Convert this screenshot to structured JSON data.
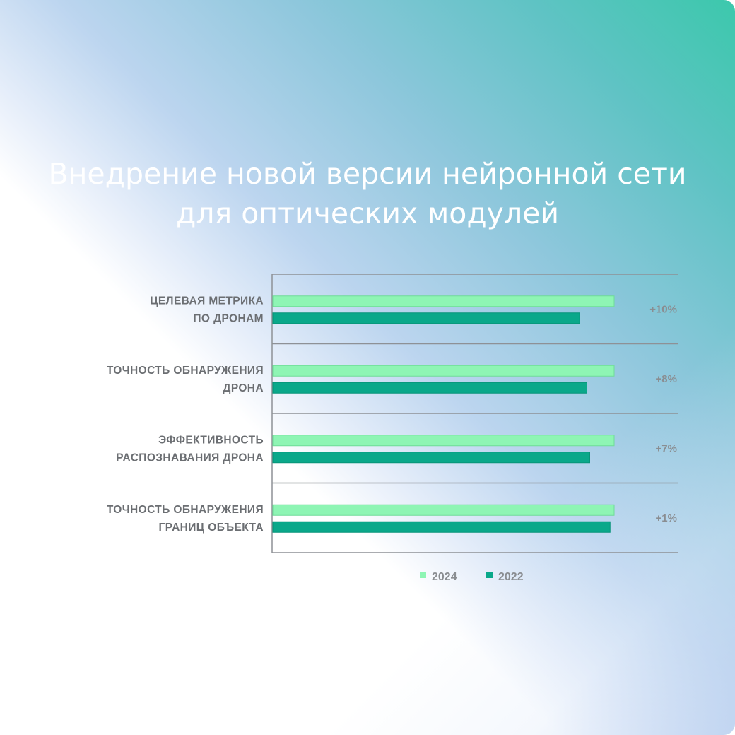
{
  "title": "Внедрение новой версии нейронной сети для оптических модулей",
  "chart_data": {
    "type": "bar",
    "orientation": "horizontal",
    "title": "Внедрение новой версии нейронной сети для оптических модулей",
    "categories": [
      [
        "ЦЕЛЕВАЯ МЕТРИКА",
        "ПО ДРОНАМ"
      ],
      [
        "ТОЧНОСТЬ ОБНАРУЖЕНИЯ",
        "ДРОНА"
      ],
      [
        "ЭФФЕКТИВНОСТЬ",
        "РАСПОЗНАВАНИЯ ДРОНА"
      ],
      [
        "ТОЧНОСТЬ ОБНАРУЖЕНИЯ",
        "ГРАНИЦ ОБЪЕКТА"
      ]
    ],
    "series": [
      {
        "name": "2024",
        "color": "#8ef5b4",
        "values": [
          0.84,
          0.84,
          0.84,
          0.84
        ]
      },
      {
        "name": "2022",
        "color": "#0aa88a",
        "values": [
          0.755,
          0.773,
          0.78,
          0.83
        ]
      }
    ],
    "annotations": [
      "+10%",
      "+8%",
      "+7%",
      "+1%"
    ],
    "xlim": [
      0,
      1
    ],
    "legend": "bottom",
    "grid": "horizontal separators"
  }
}
